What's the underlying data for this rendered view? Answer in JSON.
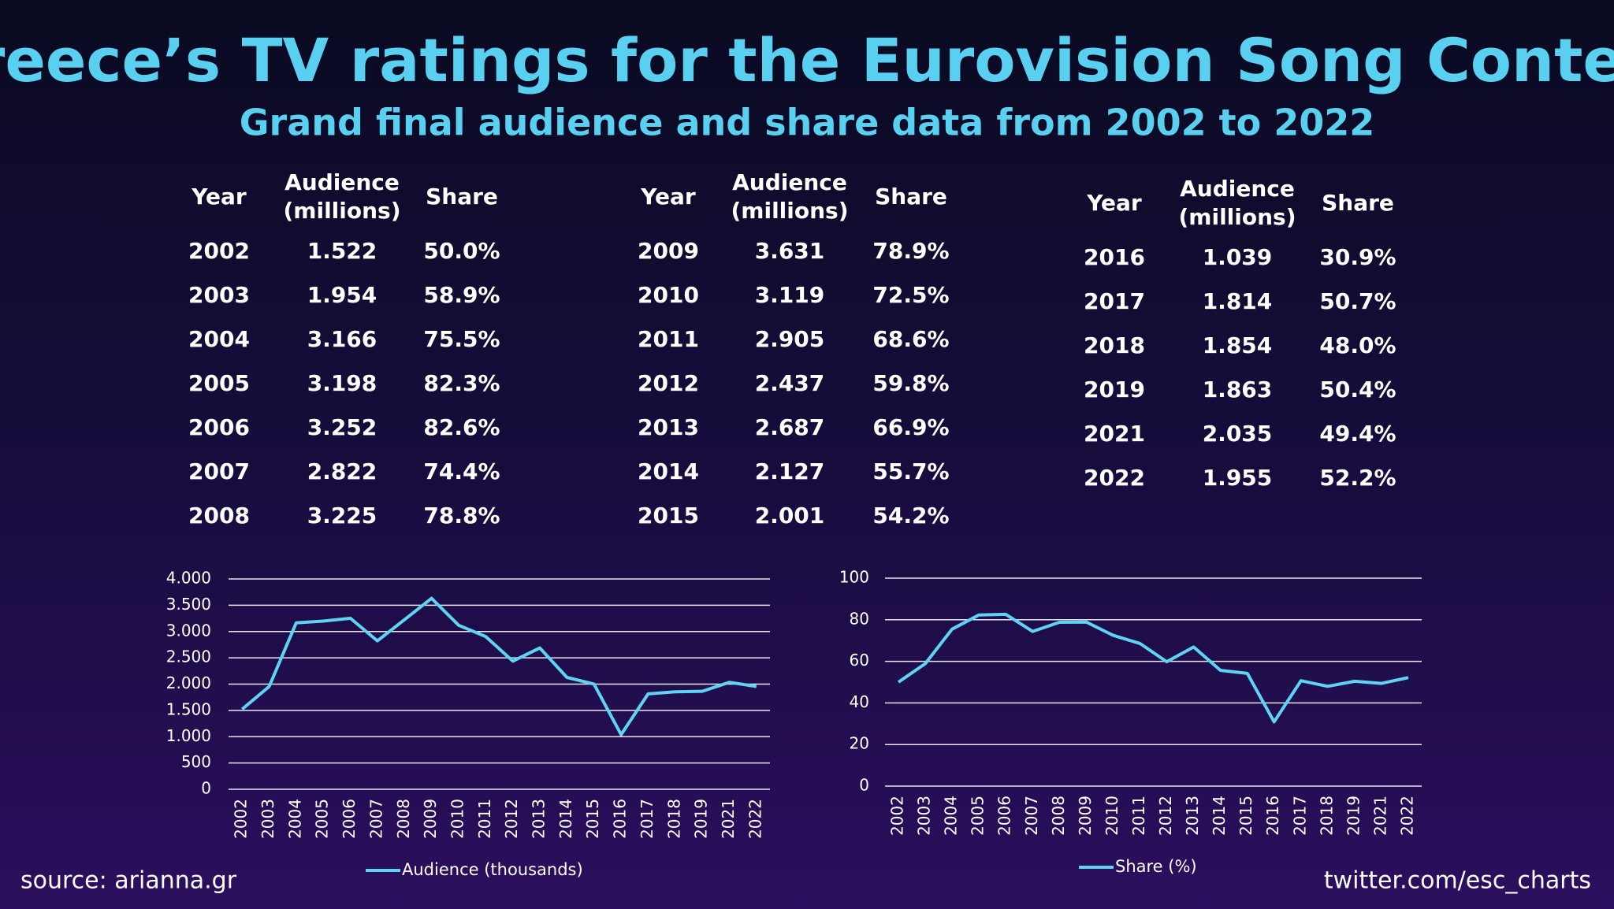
{
  "title": "Greece’s TV ratings for the Eurovision Song Contest",
  "subtitle": "Grand final audience and share data from 2002 to 2022",
  "tables": [
    {
      "columns": [
        [
          "Year"
        ],
        [
          "Audience",
          "(millions)"
        ],
        [
          "Share"
        ]
      ],
      "rows": [
        [
          "2002",
          "1.522",
          "50.0%"
        ],
        [
          "2003",
          "1.954",
          "58.9%"
        ],
        [
          "2004",
          "3.166",
          "75.5%"
        ],
        [
          "2005",
          "3.198",
          "82.3%"
        ],
        [
          "2006",
          "3.252",
          "82.6%"
        ],
        [
          "2007",
          "2.822",
          "74.4%"
        ],
        [
          "2008",
          "3.225",
          "78.8%"
        ]
      ]
    },
    {
      "columns": [
        [
          "Year"
        ],
        [
          "Audience",
          "(millions)"
        ],
        [
          "Share"
        ]
      ],
      "rows": [
        [
          "2009",
          "3.631",
          "78.9%"
        ],
        [
          "2010",
          "3.119",
          "72.5%"
        ],
        [
          "2011",
          "2.905",
          "68.6%"
        ],
        [
          "2012",
          "2.437",
          "59.8%"
        ],
        [
          "2013",
          "2.687",
          "66.9%"
        ],
        [
          "2014",
          "2.127",
          "55.7%"
        ],
        [
          "2015",
          "2.001",
          "54.2%"
        ]
      ]
    },
    {
      "columns": [
        [
          "Year"
        ],
        [
          "Audience",
          "(millions)"
        ],
        [
          "Share"
        ]
      ],
      "rows": [
        [
          "2016",
          "1.039",
          "30.9%"
        ],
        [
          "2017",
          "1.814",
          "50.7%"
        ],
        [
          "2018",
          "1.854",
          "48.0%"
        ],
        [
          "2019",
          "1.863",
          "50.4%"
        ],
        [
          "2021",
          "2.035",
          "49.4%"
        ],
        [
          "2022",
          "1.955",
          "52.2%"
        ]
      ]
    }
  ],
  "chart_data": [
    {
      "type": "line",
      "categories": [
        "2002",
        "2003",
        "2004",
        "2005",
        "2006",
        "2007",
        "2008",
        "2009",
        "2010",
        "2011",
        "2012",
        "2013",
        "2014",
        "2015",
        "2016",
        "2017",
        "2018",
        "2019",
        "2021",
        "2022"
      ],
      "series": [
        {
          "name": "Audience (thousands)",
          "color": "#5fd3f3",
          "values": [
            1522,
            1954,
            3166,
            3198,
            3252,
            2822,
            3225,
            3631,
            3119,
            2905,
            2437,
            2687,
            2127,
            2001,
            1039,
            1814,
            1854,
            1863,
            2035,
            1955
          ]
        }
      ],
      "ylim": [
        0,
        4000
      ],
      "yticks": [
        0,
        500,
        {
          "value": 1000,
          "label": "1.000"
        },
        {
          "value": 1500,
          "label": "1.500"
        },
        {
          "value": 2000,
          "label": "2.000"
        },
        {
          "value": 2500,
          "label": "2.500"
        },
        {
          "value": 3000,
          "label": "3.000"
        },
        {
          "value": 3500,
          "label": "3.500"
        },
        {
          "value": 4000,
          "label": "4.000"
        }
      ],
      "grid": true,
      "legend": "bottom"
    },
    {
      "type": "line",
      "categories": [
        "2002",
        "2003",
        "2004",
        "2005",
        "2006",
        "2007",
        "2008",
        "2009",
        "2010",
        "2011",
        "2012",
        "2013",
        "2014",
        "2015",
        "2016",
        "2017",
        "2018",
        "2019",
        "2021",
        "2022"
      ],
      "series": [
        {
          "name": "Share (%)",
          "color": "#5fd3f3",
          "values": [
            50.0,
            58.9,
            75.5,
            82.3,
            82.6,
            74.4,
            78.8,
            78.9,
            72.5,
            68.6,
            59.8,
            66.9,
            55.7,
            54.2,
            30.9,
            50.7,
            48.0,
            50.4,
            49.4,
            52.2
          ]
        }
      ],
      "ylim": [
        0,
        100
      ],
      "yticks": [
        0,
        20,
        40,
        60,
        80,
        100
      ],
      "grid": true,
      "legend": "bottom"
    }
  ],
  "source": "source: arianna.gr",
  "credit": "twitter.com/esc_charts"
}
